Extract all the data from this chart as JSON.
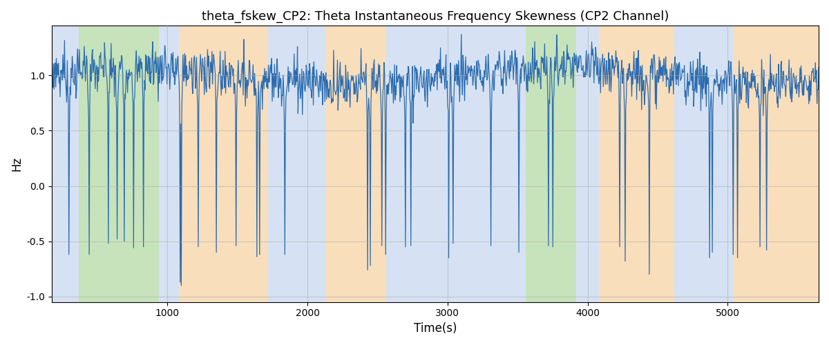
{
  "title": "theta_fskew_CP2: Theta Instantaneous Frequency Skewness (CP2 Channel)",
  "xlabel": "Time(s)",
  "ylabel": "Hz",
  "ylim": [
    -1.05,
    1.45
  ],
  "xlim": [
    175,
    5650
  ],
  "line_color": "#2b6cb0",
  "line_width": 0.9,
  "grid_color": "#aaaaaa",
  "grid_alpha": 0.5,
  "background_color": "#ffffff",
  "colored_regions": [
    {
      "xmin": 175,
      "xmax": 365,
      "color": "#aec6e8",
      "alpha": 0.5
    },
    {
      "xmin": 365,
      "xmax": 940,
      "color": "#90c878",
      "alpha": 0.5
    },
    {
      "xmin": 940,
      "xmax": 1080,
      "color": "#aec6e8",
      "alpha": 0.5
    },
    {
      "xmin": 1080,
      "xmax": 1720,
      "color": "#f5c890",
      "alpha": 0.6
    },
    {
      "xmin": 1720,
      "xmax": 2130,
      "color": "#aec6e8",
      "alpha": 0.5
    },
    {
      "xmin": 2130,
      "xmax": 2560,
      "color": "#f5c890",
      "alpha": 0.6
    },
    {
      "xmin": 2560,
      "xmax": 3100,
      "color": "#aec6e8",
      "alpha": 0.5
    },
    {
      "xmin": 3100,
      "xmax": 3380,
      "color": "#aec6e8",
      "alpha": 0.5
    },
    {
      "xmin": 3380,
      "xmax": 3560,
      "color": "#aec6e8",
      "alpha": 0.5
    },
    {
      "xmin": 3560,
      "xmax": 3920,
      "color": "#90c878",
      "alpha": 0.5
    },
    {
      "xmin": 3920,
      "xmax": 4080,
      "color": "#aec6e8",
      "alpha": 0.5
    },
    {
      "xmin": 4080,
      "xmax": 4620,
      "color": "#f5c890",
      "alpha": 0.6
    },
    {
      "xmin": 4620,
      "xmax": 5040,
      "color": "#aec6e8",
      "alpha": 0.5
    },
    {
      "xmin": 5040,
      "xmax": 5650,
      "color": "#f5c890",
      "alpha": 0.6
    }
  ],
  "title_fontsize": 13,
  "tick_fontsize": 10,
  "label_fontsize": 12
}
